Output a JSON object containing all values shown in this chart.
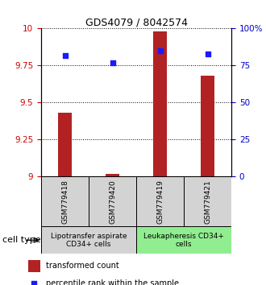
{
  "title": "GDS4079 / 8042574",
  "samples": [
    "GSM779418",
    "GSM779420",
    "GSM779419",
    "GSM779421"
  ],
  "transformed_counts": [
    9.43,
    9.02,
    9.98,
    9.68
  ],
  "percentile_ranks": [
    82,
    77,
    85,
    83
  ],
  "ylim_left": [
    9.0,
    10.0
  ],
  "ylim_right": [
    0,
    100
  ],
  "yticks_left": [
    9.0,
    9.25,
    9.5,
    9.75,
    10.0
  ],
  "yticks_right": [
    0,
    25,
    50,
    75,
    100
  ],
  "ytick_labels_left": [
    "9",
    "9.25",
    "9.5",
    "9.75",
    "10"
  ],
  "ytick_labels_right": [
    "0",
    "25",
    "50",
    "75",
    "100%"
  ],
  "bar_color": "#b22222",
  "dot_color": "#1a1aff",
  "bar_bottom": 9.0,
  "cell_type_groups": [
    {
      "label": "Lipotransfer aspirate\nCD34+ cells",
      "samples": [
        0,
        1
      ],
      "color": "#d3d3d3"
    },
    {
      "label": "Leukapheresis CD34+\ncells",
      "samples": [
        2,
        3
      ],
      "color": "#90ee90"
    }
  ],
  "cell_type_label": "cell type",
  "legend_bar_label": "transformed count",
  "legend_dot_label": "percentile rank within the sample",
  "left_axis_color": "#cc0000",
  "right_axis_color": "#0000cc",
  "title_fontsize": 9,
  "tick_fontsize": 7.5,
  "sample_fontsize": 6.5,
  "group_fontsize": 6.5,
  "legend_fontsize": 7
}
